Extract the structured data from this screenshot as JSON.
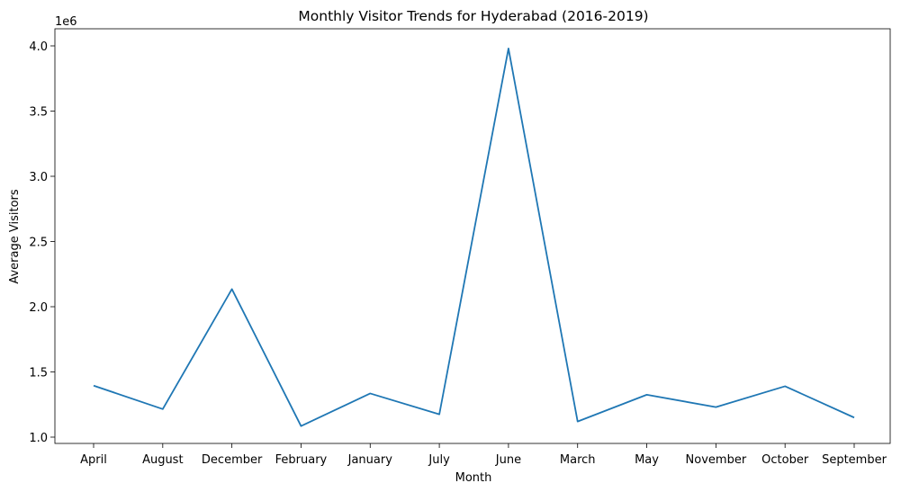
{
  "chart_data": {
    "type": "line",
    "title": "Monthly Visitor Trends for Hyderabad (2016-2019)",
    "xlabel": "Month",
    "ylabel": "Average Visitors",
    "offset_text": "1e6",
    "categories": [
      "April",
      "August",
      "December",
      "February",
      "January",
      "July",
      "June",
      "March",
      "May",
      "November",
      "October",
      "September"
    ],
    "series": [
      {
        "name": "Average Visitors",
        "values": [
          1395000,
          1215000,
          2135000,
          1085000,
          1335000,
          1175000,
          3980000,
          1120000,
          1325000,
          1230000,
          1390000,
          1150000
        ]
      }
    ],
    "ylim": [
      1.0,
      4.0
    ],
    "yticks": [
      1.0,
      1.5,
      2.0,
      2.5,
      3.0,
      3.5,
      4.0
    ],
    "ytick_labels": [
      "1.0",
      "1.5",
      "2.0",
      "2.5",
      "3.0",
      "3.5",
      "4.0"
    ],
    "line_color": "#1f77b4",
    "grid": false,
    "legend": "none"
  }
}
